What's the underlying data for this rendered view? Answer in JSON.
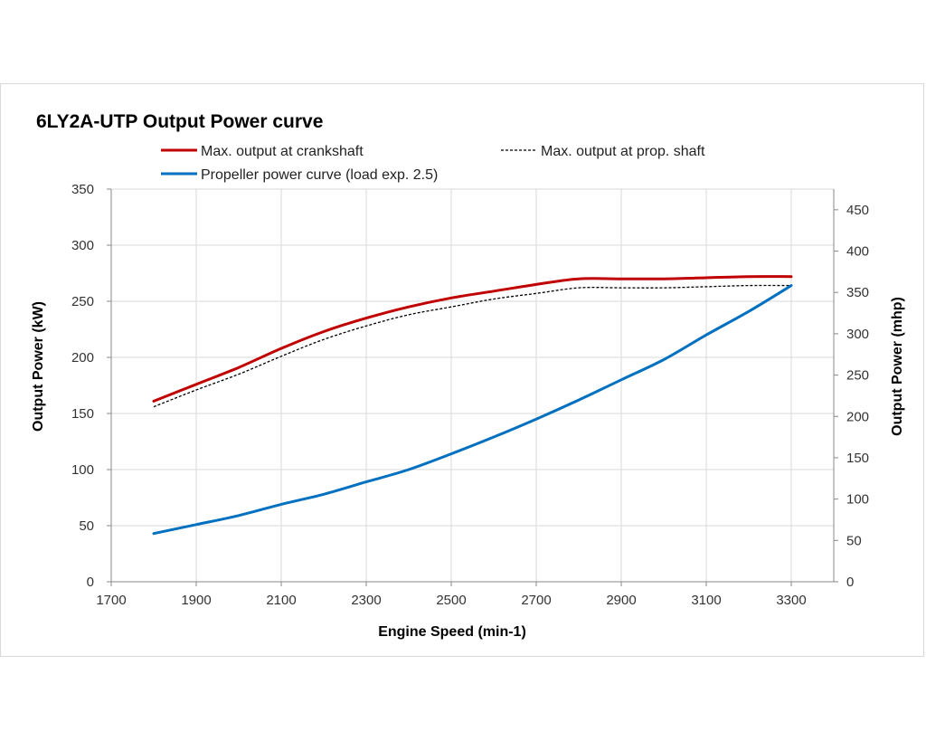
{
  "chart_data": {
    "type": "line",
    "title": "6LY2A-UTP Output Power curve",
    "xlabel": "Engine Speed (min-1)",
    "ylabel": "Output Power (kW)",
    "y2label": "Output Power (mhp)",
    "xlim": [
      1700,
      3400
    ],
    "ylim": [
      0,
      350
    ],
    "y2lim": [
      0,
      475
    ],
    "grid": true,
    "legend_position": "top",
    "x_ticks": [
      "1700",
      "1900",
      "2100",
      "2300",
      "2500",
      "2700",
      "2900",
      "3100",
      "3300"
    ],
    "x_tick_values": [
      1700,
      1900,
      2100,
      2300,
      2500,
      2700,
      2900,
      3100,
      3300
    ],
    "y_ticks": [
      "0",
      "50",
      "100",
      "150",
      "200",
      "250",
      "300",
      "350"
    ],
    "y_tick_values": [
      0,
      50,
      100,
      150,
      200,
      250,
      300,
      350
    ],
    "y2_ticks": [
      "0",
      "50",
      "100",
      "150",
      "200",
      "250",
      "300",
      "350",
      "400",
      "450"
    ],
    "y2_tick_values": [
      0,
      50,
      100,
      150,
      200,
      250,
      300,
      350,
      400,
      450
    ],
    "grid_x": [
      1900,
      2100,
      2300,
      2500,
      2700,
      2900,
      3100,
      3300
    ],
    "grid_y": [
      50,
      100,
      150,
      200,
      250,
      300,
      350
    ],
    "series": [
      {
        "name": "Max. output at crankshaft",
        "color": "#c00000",
        "style": "solid",
        "x": [
          1800,
          1900,
          2000,
          2100,
          2200,
          2300,
          2400,
          2500,
          2600,
          2700,
          2800,
          2900,
          3000,
          3100,
          3200,
          3300
        ],
        "y": [
          161,
          176,
          191,
          208,
          223,
          235,
          245,
          253,
          259,
          265,
          270,
          270,
          270,
          271,
          272,
          272
        ]
      },
      {
        "name": "Max. output at prop. shaft",
        "color": "#000000",
        "style": "dashed",
        "x": [
          1800,
          1900,
          2000,
          2100,
          2200,
          2300,
          2400,
          2500,
          2600,
          2700,
          2800,
          2900,
          3000,
          3100,
          3200,
          3300
        ],
        "y": [
          156,
          171,
          185,
          201,
          216,
          228,
          238,
          245,
          252,
          257,
          262,
          262,
          262,
          263,
          264,
          264
        ]
      },
      {
        "name": "Propeller power curve (load exp. 2.5)",
        "color": "#0070c0",
        "style": "solid",
        "x": [
          1800,
          1900,
          2000,
          2100,
          2200,
          2300,
          2400,
          2500,
          2600,
          2700,
          2800,
          2900,
          3000,
          3100,
          3200,
          3300
        ],
        "y": [
          43,
          51,
          59,
          69,
          78,
          89,
          100,
          114,
          129,
          145,
          162,
          180,
          198,
          220,
          241,
          264
        ]
      }
    ]
  }
}
